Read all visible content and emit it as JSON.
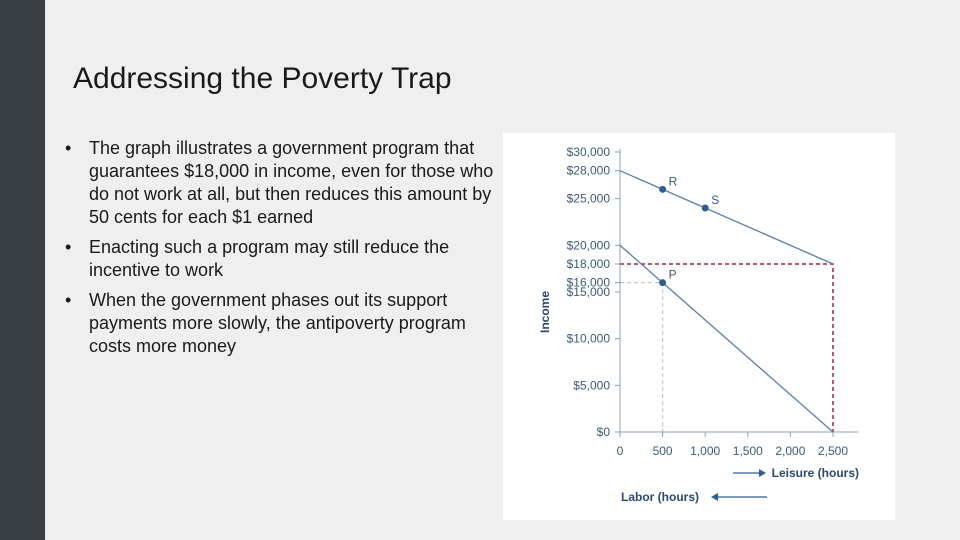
{
  "slide": {
    "title": "Addressing the Poverty Trap",
    "bullets": [
      "The graph illustrates a government program that guarantees $18,000 in income, even for those who do not work at all, but then reduces this amount by 50 cents for each $1 earned",
      "Enacting such a program may still reduce the incentive to work",
      "When the government phases out its support payments more slowly, the antipoverty program costs more money"
    ]
  },
  "colors": {
    "sidebar": "#3a3f44",
    "background": "#efefef",
    "line": "#5b7fa6",
    "dashed_red": "#9b2346",
    "dashed_gray": "#b9c6d4",
    "point": "#2f5f8f",
    "text": "#3b5a7a"
  },
  "chart_data": {
    "type": "line",
    "title": "",
    "xlabel": "Leisure (hours)",
    "xlabel2": "Labor (hours)",
    "ylabel": "Income",
    "xlim": [
      0,
      2500
    ],
    "ylim": [
      0,
      30000
    ],
    "x_ticks": [
      {
        "value": 0,
        "label": "0"
      },
      {
        "value": 500,
        "label": "500"
      },
      {
        "value": 1000,
        "label": "1,000"
      },
      {
        "value": 1500,
        "label": "1,500"
      },
      {
        "value": 2000,
        "label": "2,000"
      },
      {
        "value": 2500,
        "label": "2,500"
      }
    ],
    "y_ticks": [
      {
        "value": 0,
        "label": "$0"
      },
      {
        "value": 5000,
        "label": "$5,000"
      },
      {
        "value": 10000,
        "label": "$10,000"
      },
      {
        "value": 15000,
        "label": "$15,000"
      },
      {
        "value": 16000,
        "label": "$16,000"
      },
      {
        "value": 18000,
        "label": "$18,000"
      },
      {
        "value": 20000,
        "label": "$20,000"
      },
      {
        "value": 25000,
        "label": "$25,000"
      },
      {
        "value": 28000,
        "label": "$28,000"
      },
      {
        "value": 30000,
        "label": "$30,000"
      }
    ],
    "series": [
      {
        "x": [
          0,
          2500
        ],
        "y": [
          28000,
          18000
        ]
      },
      {
        "x": [
          0,
          2500
        ],
        "y": [
          20000,
          0
        ]
      }
    ],
    "points": [
      {
        "label": "R",
        "x": 500,
        "y": 26000
      },
      {
        "label": "S",
        "x": 1000,
        "y": 24000
      },
      {
        "label": "P",
        "x": 500,
        "y": 16000
      }
    ],
    "guides": [
      {
        "style": "red-dashed",
        "x": [
          0,
          2500,
          2500
        ],
        "y": [
          18000,
          18000,
          0
        ]
      },
      {
        "style": "gray-dashed",
        "x": [
          0,
          500,
          500
        ],
        "y": [
          16000,
          16000,
          0
        ]
      }
    ]
  }
}
